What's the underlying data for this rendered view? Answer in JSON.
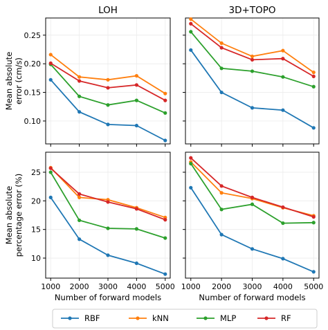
{
  "chart_data": {
    "type": "line",
    "x": [
      1000,
      2000,
      3000,
      4000,
      5000
    ],
    "x_ticks": [
      "1000",
      "2000",
      "3000",
      "4000",
      "5000"
    ],
    "xlabel": "Number of forward models",
    "row_labels": [
      [
        "Mean absolute",
        "error (cm/s)"
      ],
      [
        "Mean absolute",
        "percentage error (%)"
      ]
    ],
    "column_titles": [
      "LOH",
      "3D+TOPO"
    ],
    "legend": {
      "placement": "bottom",
      "entries": [
        {
          "name": "RBF",
          "color": "#1f77b4"
        },
        {
          "name": "kNN",
          "color": "#ff7f0e"
        },
        {
          "name": "MLP",
          "color": "#2ca02c"
        },
        {
          "name": "RF",
          "color": "#d62728"
        }
      ]
    },
    "panels": [
      {
        "id": "loh-mae",
        "title": "LOH",
        "ylim": [
          0.06,
          0.28
        ],
        "yticks": [
          0.1,
          0.15,
          0.2,
          0.25
        ],
        "ytick_labels": [
          "0.10",
          "0.15",
          "0.20",
          "0.25"
        ],
        "series": [
          {
            "name": "RBF",
            "color": "#1f77b4",
            "values": [
              0.172,
              0.116,
              0.094,
              0.092,
              0.066
            ]
          },
          {
            "name": "kNN",
            "color": "#ff7f0e",
            "values": [
              0.216,
              0.177,
              0.172,
              0.179,
              0.148
            ]
          },
          {
            "name": "MLP",
            "color": "#2ca02c",
            "values": [
              0.199,
              0.143,
              0.128,
              0.136,
              0.114
            ]
          },
          {
            "name": "RF",
            "color": "#d62728",
            "values": [
              0.201,
              0.17,
              0.158,
              0.163,
              0.136
            ]
          }
        ]
      },
      {
        "id": "topo-mae",
        "title": "3D+TOPO",
        "ylim": [
          0.06,
          0.28
        ],
        "yticks": [
          0.1,
          0.15,
          0.2,
          0.25
        ],
        "ytick_labels": [
          "",
          "",
          "",
          ""
        ],
        "series": [
          {
            "name": "RBF",
            "color": "#1f77b4",
            "values": [
              0.224,
              0.15,
              0.123,
              0.119,
              0.088
            ]
          },
          {
            "name": "kNN",
            "color": "#ff7f0e",
            "values": [
              0.278,
              0.236,
              0.213,
              0.223,
              0.185
            ]
          },
          {
            "name": "MLP",
            "color": "#2ca02c",
            "values": [
              0.256,
              0.192,
              0.187,
              0.177,
              0.16
            ]
          },
          {
            "name": "RF",
            "color": "#d62728",
            "values": [
              0.27,
              0.228,
              0.207,
              0.209,
              0.178
            ]
          }
        ]
      },
      {
        "id": "loh-mape",
        "title": "",
        "ylim": [
          6.5,
          28.5
        ],
        "yticks": [
          10,
          15,
          20,
          25
        ],
        "ytick_labels": [
          "10",
          "15",
          "20",
          "25"
        ],
        "series": [
          {
            "name": "RBF",
            "color": "#1f77b4",
            "values": [
              20.6,
              13.3,
              10.5,
              9.1,
              7.2
            ]
          },
          {
            "name": "kNN",
            "color": "#ff7f0e",
            "values": [
              25.8,
              20.6,
              20.2,
              18.8,
              17.1
            ]
          },
          {
            "name": "MLP",
            "color": "#2ca02c",
            "values": [
              25.0,
              16.6,
              15.2,
              15.1,
              13.5
            ]
          },
          {
            "name": "RF",
            "color": "#d62728",
            "values": [
              25.7,
              21.2,
              19.8,
              18.6,
              16.7
            ]
          }
        ]
      },
      {
        "id": "topo-mape",
        "title": "",
        "ylim": [
          6.5,
          28.5
        ],
        "yticks": [
          10,
          15,
          20,
          25
        ],
        "ytick_labels": [
          "",
          "",
          "",
          ""
        ],
        "series": [
          {
            "name": "RBF",
            "color": "#1f77b4",
            "values": [
              22.3,
              14.1,
              11.6,
              9.9,
              7.6
            ]
          },
          {
            "name": "kNN",
            "color": "#ff7f0e",
            "values": [
              26.8,
              21.4,
              20.4,
              18.8,
              17.4
            ]
          },
          {
            "name": "MLP",
            "color": "#2ca02c",
            "values": [
              26.5,
              18.5,
              19.4,
              16.1,
              16.2
            ]
          },
          {
            "name": "RF",
            "color": "#d62728",
            "values": [
              27.5,
              22.6,
              20.6,
              18.9,
              17.2
            ]
          }
        ]
      }
    ]
  }
}
